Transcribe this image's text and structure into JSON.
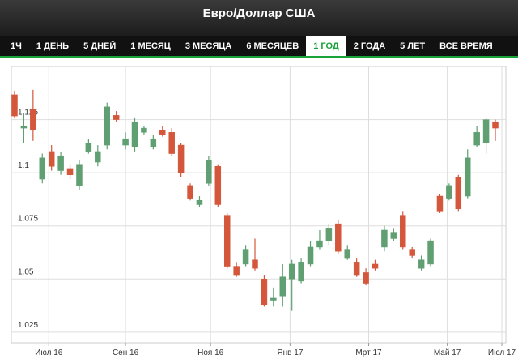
{
  "header": {
    "title": "Евро/Доллар США"
  },
  "tabs": [
    "1Ч",
    "1 ДЕНЬ",
    "5 ДНЕЙ",
    "1 МЕСЯЦ",
    "3 МЕСЯЦА",
    "6 МЕСЯЦЕВ",
    "1 ГОД",
    "2 ГОДА",
    "5 ЛЕТ",
    "ВСЕ ВРЕМЯ"
  ],
  "active_tab": 6,
  "chart_data": {
    "type": "candlestick",
    "up_color": "#5f9f72",
    "down_color": "#d4573b",
    "categories": [
      null,
      null,
      null,
      null,
      null,
      null,
      null,
      null,
      null,
      null,
      null,
      null,
      null,
      null,
      null,
      null,
      null,
      null,
      null,
      null,
      null,
      null,
      null,
      null,
      null,
      null,
      null,
      null,
      null,
      null,
      null,
      null,
      null,
      null,
      null,
      null,
      null,
      null,
      null,
      null,
      null,
      null,
      null,
      null,
      null,
      null,
      null,
      null,
      null,
      null,
      null,
      null,
      null
    ],
    "open": [
      1.1367,
      1.121,
      1.13,
      1.097,
      1.11,
      1.101,
      1.102,
      1.094,
      1.11,
      1.105,
      1.113,
      1.127,
      1.113,
      1.112,
      1.119,
      1.112,
      1.12,
      1.119,
      1.113,
      1.094,
      1.085,
      1.095,
      1.103,
      1.08,
      1.056,
      1.057,
      1.059,
      1.05,
      1.04,
      1.042,
      1.05,
      1.049,
      1.057,
      1.065,
      1.068,
      1.076,
      1.06,
      1.058,
      1.053,
      1.057,
      1.065,
      1.069,
      1.08,
      1.064,
      1.055,
      1.057,
      1.089,
      1.088,
      1.098,
      1.089,
      1.113,
      1.114,
      1.124
    ],
    "high": [
      1.1386,
      1.128,
      1.139,
      1.109,
      1.113,
      1.11,
      1.104,
      1.106,
      1.116,
      1.113,
      1.133,
      1.129,
      1.119,
      1.126,
      1.122,
      1.118,
      1.122,
      1.121,
      1.114,
      1.095,
      1.089,
      1.108,
      1.104,
      1.081,
      1.058,
      1.066,
      1.069,
      1.052,
      1.046,
      1.057,
      1.059,
      1.06,
      1.068,
      1.073,
      1.076,
      1.078,
      1.066,
      1.06,
      1.055,
      1.059,
      1.075,
      1.074,
      1.082,
      1.065,
      1.061,
      1.069,
      1.09,
      1.095,
      1.099,
      1.111,
      1.122,
      1.126,
      1.125
    ],
    "low": [
      1.126,
      1.114,
      1.115,
      1.095,
      1.101,
      1.099,
      1.097,
      1.092,
      1.109,
      1.103,
      1.111,
      1.124,
      1.111,
      1.11,
      1.118,
      1.111,
      1.117,
      1.108,
      1.098,
      1.087,
      1.084,
      1.094,
      1.084,
      1.055,
      1.051,
      1.056,
      1.054,
      1.037,
      1.037,
      1.037,
      1.035,
      1.048,
      1.056,
      1.064,
      1.066,
      1.062,
      1.059,
      1.051,
      1.047,
      1.054,
      1.063,
      1.068,
      1.064,
      1.06,
      1.054,
      1.056,
      1.081,
      1.087,
      1.082,
      1.088,
      1.112,
      1.109,
      1.115
    ],
    "close": [
      1.1267,
      1.122,
      1.12,
      1.107,
      1.103,
      1.108,
      1.099,
      1.104,
      1.114,
      1.11,
      1.131,
      1.125,
      1.116,
      1.124,
      1.121,
      1.116,
      1.118,
      1.109,
      1.1,
      1.088,
      1.087,
      1.106,
      1.085,
      1.056,
      1.052,
      1.064,
      1.055,
      1.038,
      1.041,
      1.051,
      1.057,
      1.058,
      1.065,
      1.068,
      1.074,
      1.063,
      1.064,
      1.052,
      1.048,
      1.055,
      1.073,
      1.072,
      1.065,
      1.061,
      1.059,
      1.068,
      1.082,
      1.094,
      1.083,
      1.107,
      1.119,
      1.125,
      1.121
    ],
    "ylim": [
      1.02,
      1.15
    ],
    "yticks": [
      1.025,
      1.05,
      1.075,
      1.1,
      1.125
    ],
    "xticks": [
      {
        "value": 3.7,
        "label": "Июл 16"
      },
      {
        "value": 12.0,
        "label": "Сен 16"
      },
      {
        "value": 21.2,
        "label": "Ноя 16"
      },
      {
        "value": 29.8,
        "label": "Янв 17"
      },
      {
        "value": 38.3,
        "label": "Мрт 17"
      },
      {
        "value": 46.8,
        "label": "Май 17"
      },
      {
        "value": 52.7,
        "label": "Июл 17"
      }
    ],
    "grid": true
  }
}
